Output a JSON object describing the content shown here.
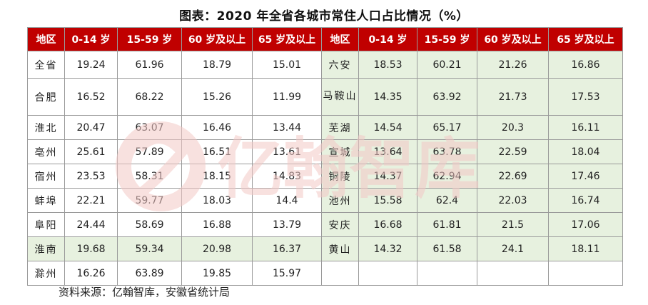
{
  "title": "图表：2020 年全省各城市常住人口占比情况（%）",
  "headers": [
    "地区",
    "0-14 岁",
    "15-59 岁",
    "60 岁及以上",
    "65 岁及以上",
    "地区",
    "0-14 岁",
    "15-59 岁",
    "60 岁及以上",
    "65 岁及以上"
  ],
  "left_rows": [
    {
      "name": "全省",
      "values": [
        "19.24",
        "61.96",
        "18.79",
        "15.01"
      ],
      "highlight": false
    },
    {
      "name": "合肥",
      "values": [
        "16.52",
        "68.22",
        "15.26",
        "11.99"
      ],
      "highlight": false
    },
    {
      "name": "淮北",
      "values": [
        "20.47",
        "63.07",
        "16.46",
        "13.44"
      ],
      "highlight": false
    },
    {
      "name": "亳州",
      "values": [
        "25.61",
        "57.89",
        "16.51",
        "13.61"
      ],
      "highlight": false
    },
    {
      "name": "宿州",
      "values": [
        "23.53",
        "58.31",
        "18.15",
        "14.83"
      ],
      "highlight": false
    },
    {
      "name": "蚌埠",
      "values": [
        "22.21",
        "59.77",
        "18.03",
        "14.4"
      ],
      "highlight": false
    },
    {
      "name": "阜阳",
      "values": [
        "24.44",
        "58.69",
        "16.88",
        "13.79"
      ],
      "highlight": false
    },
    {
      "name": "淮南",
      "values": [
        "19.68",
        "59.34",
        "20.98",
        "16.37"
      ],
      "highlight": true
    },
    {
      "name": "滁州",
      "values": [
        "16.26",
        "63.89",
        "19.85",
        "15.97"
      ],
      "highlight": false
    }
  ],
  "right_rows": [
    {
      "name": "六安",
      "values": [
        "18.53",
        "60.21",
        "21.26",
        "16.86"
      ]
    },
    {
      "name": "马鞍山",
      "values": [
        "14.35",
        "63.92",
        "21.73",
        "17.53"
      ]
    },
    {
      "name": "芜湖",
      "values": [
        "14.54",
        "65.17",
        "20.3",
        "16.11"
      ]
    },
    {
      "name": "宣城",
      "values": [
        "13.64",
        "63.78",
        "22.59",
        "18.04"
      ]
    },
    {
      "name": "铜陵",
      "values": [
        "14.37",
        "62.94",
        "22.69",
        "17.46"
      ]
    },
    {
      "name": "池州",
      "values": [
        "15.58",
        "62.4",
        "22.03",
        "16.74"
      ]
    },
    {
      "name": "安庆",
      "values": [
        "16.68",
        "61.81",
        "21.5",
        "17.06"
      ]
    },
    {
      "name": "黄山",
      "values": [
        "14.32",
        "61.58",
        "24.1",
        "18.11"
      ]
    },
    {
      "name": "",
      "values": [
        "",
        "",
        "",
        ""
      ]
    }
  ],
  "watermark_text": "亿翰智库",
  "source": "资料来源：亿翰智库，安徽省统计局",
  "colors": {
    "header_bg": "#c00000",
    "highlight_bg": "#e7f1df",
    "watermark": "#f3c9c6"
  }
}
